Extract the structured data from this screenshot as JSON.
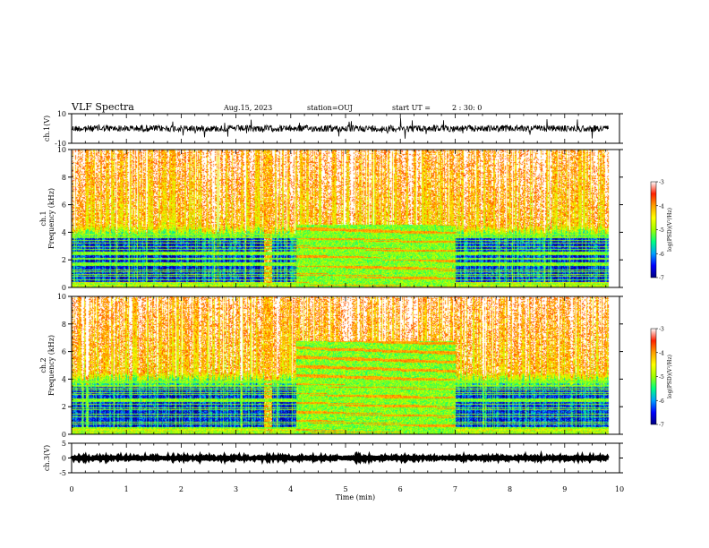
{
  "header": {
    "title": "VLF Spectra",
    "date": "Aug.15, 2023",
    "station": "station=OUJ",
    "start_label": "start  UT  =",
    "start_time": "2 : 30: 0"
  },
  "chart_data": [
    {
      "type": "line",
      "id": "ch1-waveform",
      "ylabel": "ch.1(V)",
      "ylim": [
        -10,
        10
      ],
      "y_ticks": [
        "10",
        "-10"
      ],
      "xlim": [
        0,
        10
      ],
      "trace": {
        "baseline": 0.0,
        "spread": 2.2,
        "color": "#000000",
        "note_end_min": 9.8
      }
    },
    {
      "type": "heatmap",
      "id": "ch1-spectrogram",
      "ylabel": "ch.1\nFrequency (kHz)",
      "ylabel_lines": [
        "ch.1",
        "Frequency (kHz)"
      ],
      "ylim": [
        0,
        10
      ],
      "y_ticks": [
        "0",
        "2",
        "4",
        "6",
        "8",
        "10"
      ],
      "xlim": [
        0,
        10
      ],
      "data_end_min": 9.8,
      "colorbar": {
        "label": "log(PSD)(V²/Hz)",
        "range": [
          -7,
          -3
        ],
        "ticks": [
          "-3",
          "-4",
          "-5",
          "-6",
          "-7"
        ]
      },
      "events": [
        {
          "name": "burst",
          "t_start": 3.5,
          "t_end": 3.65
        },
        {
          "name": "bands",
          "t_start": 4.1,
          "t_end": 7.0,
          "f_top": 4.6
        }
      ]
    },
    {
      "type": "heatmap",
      "id": "ch2-spectrogram",
      "ylabel": "ch.2\nFrequency (kHz)",
      "ylabel_lines": [
        "ch.2",
        "Frequency (kHz)"
      ],
      "ylim": [
        0,
        10
      ],
      "y_ticks": [
        "0",
        "2",
        "4",
        "6",
        "8",
        "10"
      ],
      "xlim": [
        0,
        10
      ],
      "data_end_min": 9.8,
      "colorbar": {
        "label": "log(PSD)(V²/Hz)",
        "range": [
          -7,
          -3
        ],
        "ticks": [
          "-3",
          "-4",
          "-5",
          "-6",
          "-7"
        ]
      },
      "events": [
        {
          "name": "burst",
          "t_start": 3.5,
          "t_end": 3.65
        },
        {
          "name": "bands",
          "t_start": 4.1,
          "t_end": 7.0,
          "f_top": 6.8
        }
      ]
    },
    {
      "type": "line",
      "id": "ch3-waveform",
      "ylabel": "ch.3(V)",
      "ylim": [
        -5,
        5
      ],
      "y_ticks": [
        "5",
        "0",
        "-5"
      ],
      "xlim": [
        0,
        10
      ],
      "trace": {
        "baseline": 0.0,
        "spread": 0.3,
        "color": "#000000",
        "note_end_min": 9.8
      }
    }
  ],
  "x_axis": {
    "label": "Time  (min)",
    "ticks": [
      "0",
      "1",
      "2",
      "3",
      "4",
      "5",
      "6",
      "7",
      "8",
      "9",
      "10"
    ],
    "range": [
      0,
      10
    ]
  },
  "colors": {
    "spectrum": [
      "#000080",
      "#0000ff",
      "#00a0ff",
      "#00ff80",
      "#a0ff00",
      "#ffff00",
      "#ffa000",
      "#ff2000",
      "#ffffff"
    ]
  }
}
